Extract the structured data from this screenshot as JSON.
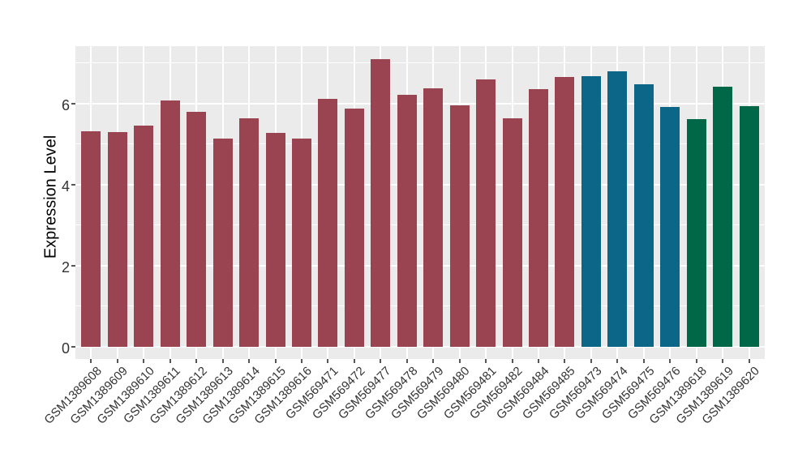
{
  "chart_data": {
    "type": "bar",
    "title": "",
    "xlabel": "",
    "ylabel": "Expression Level",
    "ylim": [
      -0.3,
      7.42
    ],
    "yticks": [
      0,
      2,
      4,
      6
    ],
    "grid": "white major lines at even values, thinner white minor lines at odd values, vertical white line at each bar center",
    "legend": "none",
    "panel_bg_color": "#EBEBEB",
    "outer_bg_color": "#FFFFFF",
    "palette": {
      "group1_red": "#9A4452",
      "group2_blue": "#0B6687",
      "group3_green": "#006747"
    },
    "categories": [
      "GSM1389608",
      "GSM1389609",
      "GSM1389610",
      "GSM1389611",
      "GSM1389612",
      "GSM1389613",
      "GSM1389614",
      "GSM1389615",
      "GSM1389616",
      "GSM569471",
      "GSM569472",
      "GSM569477",
      "GSM569478",
      "GSM569479",
      "GSM569480",
      "GSM569481",
      "GSM569482",
      "GSM569484",
      "GSM569485",
      "GSM569473",
      "GSM569474",
      "GSM569475",
      "GSM569476",
      "GSM1389618",
      "GSM1389619",
      "GSM1389620"
    ],
    "values": [
      5.31,
      5.29,
      5.45,
      6.07,
      5.79,
      5.14,
      5.63,
      5.28,
      5.13,
      6.12,
      5.88,
      7.09,
      6.22,
      6.38,
      5.95,
      6.6,
      5.64,
      6.35,
      6.65,
      6.67,
      6.8,
      6.47,
      5.91,
      5.62,
      6.41,
      5.94
    ],
    "bar_colors": [
      "#9A4452",
      "#9A4452",
      "#9A4452",
      "#9A4452",
      "#9A4452",
      "#9A4452",
      "#9A4452",
      "#9A4452",
      "#9A4452",
      "#9A4452",
      "#9A4452",
      "#9A4452",
      "#9A4452",
      "#9A4452",
      "#9A4452",
      "#9A4452",
      "#9A4452",
      "#9A4452",
      "#9A4452",
      "#0B6687",
      "#0B6687",
      "#0B6687",
      "#0B6687",
      "#006747",
      "#006747",
      "#006747"
    ]
  }
}
